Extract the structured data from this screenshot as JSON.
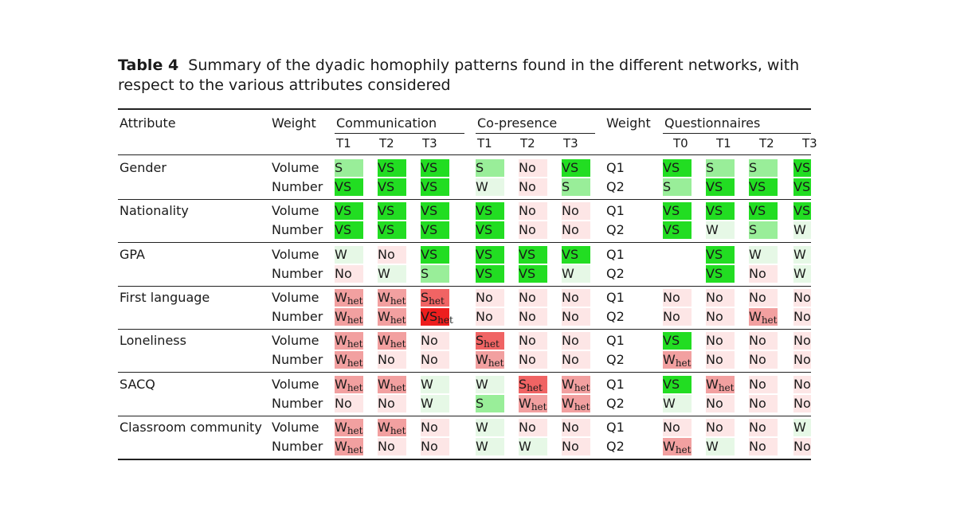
{
  "caption": {
    "label": "Table 4",
    "text": "Summary of the dyadic homophily patterns found in the different networks, with respect to the various attributes considered"
  },
  "headers": {
    "attribute": "Attribute",
    "weight": "Weight",
    "communication": "Communication",
    "copresence": "Co-presence",
    "weight2": "Weight",
    "questionnaires": "Questionnaires",
    "comm_sub": [
      "T1",
      "T2",
      "T3"
    ],
    "cop_sub": [
      "T1",
      "T2",
      "T3"
    ],
    "q_sub": [
      "T0",
      "T1",
      "T2",
      "T3"
    ]
  },
  "colors": {
    "VS": "#22dd22",
    "S": "#99ee99",
    "W": "#e6f8e6",
    "No": "#fde6e6",
    "Whet": "#f2a0a0",
    "Shet": "#f06464",
    "VShet": "#ee1e1e"
  },
  "groups": [
    {
      "attribute": "Gender",
      "rows": [
        {
          "weight": "Volume",
          "comm": [
            "S",
            "VS",
            "VS"
          ],
          "cop": [
            "S",
            "No",
            "VS"
          ],
          "qweight": "Q1",
          "q": [
            "VS",
            "S",
            "S",
            "VS"
          ]
        },
        {
          "weight": "Number",
          "comm": [
            "VS",
            "VS",
            "VS"
          ],
          "cop": [
            "W",
            "No",
            "S"
          ],
          "qweight": "Q2",
          "q": [
            "S",
            "VS",
            "VS",
            "VS"
          ]
        }
      ]
    },
    {
      "attribute": "Nationality",
      "rows": [
        {
          "weight": "Volume",
          "comm": [
            "VS",
            "VS",
            "VS"
          ],
          "cop": [
            "VS",
            "No",
            "No"
          ],
          "qweight": "Q1",
          "q": [
            "VS",
            "VS",
            "VS",
            "VS"
          ]
        },
        {
          "weight": "Number",
          "comm": [
            "VS",
            "VS",
            "VS"
          ],
          "cop": [
            "VS",
            "No",
            "No"
          ],
          "qweight": "Q2",
          "q": [
            "VS",
            "W",
            "S",
            "W"
          ]
        }
      ]
    },
    {
      "attribute": "GPA",
      "rows": [
        {
          "weight": "Volume",
          "comm": [
            "W",
            "No",
            "VS"
          ],
          "cop": [
            "VS",
            "VS",
            "VS"
          ],
          "qweight": "Q1",
          "q": [
            "",
            "VS",
            "W",
            "W"
          ]
        },
        {
          "weight": "Number",
          "comm": [
            "No",
            "W",
            "S"
          ],
          "cop": [
            "VS",
            "VS",
            "W"
          ],
          "qweight": "Q2",
          "q": [
            "",
            "VS",
            "No",
            "W"
          ]
        }
      ]
    },
    {
      "attribute": "First language",
      "rows": [
        {
          "weight": "Volume",
          "comm": [
            "Whet",
            "Whet",
            "Shet"
          ],
          "cop": [
            "No",
            "No",
            "No"
          ],
          "qweight": "Q1",
          "q": [
            "No",
            "No",
            "No",
            "No"
          ]
        },
        {
          "weight": "Number",
          "comm": [
            "Whet",
            "Whet",
            "VShet"
          ],
          "cop": [
            "No",
            "No",
            "No"
          ],
          "qweight": "Q2",
          "q": [
            "No",
            "No",
            "Whet",
            "No"
          ]
        }
      ]
    },
    {
      "attribute": "Loneliness",
      "rows": [
        {
          "weight": "Volume",
          "comm": [
            "Whet",
            "Whet",
            "No"
          ],
          "cop": [
            "Shet",
            "No",
            "No"
          ],
          "qweight": "Q1",
          "q": [
            "VS",
            "No",
            "No",
            "No"
          ]
        },
        {
          "weight": "Number",
          "comm": [
            "Whet",
            "No",
            "No"
          ],
          "cop": [
            "Whet",
            "No",
            "No"
          ],
          "qweight": "Q2",
          "q": [
            "Whet",
            "No",
            "No",
            "No"
          ]
        }
      ]
    },
    {
      "attribute": "SACQ",
      "rows": [
        {
          "weight": "Volume",
          "comm": [
            "Whet",
            "Whet",
            "W"
          ],
          "cop": [
            "W",
            "Shet",
            "Whet"
          ],
          "qweight": "Q1",
          "q": [
            "VS",
            "Whet",
            "No",
            "No"
          ]
        },
        {
          "weight": "Number",
          "comm": [
            "No",
            "No",
            "W"
          ],
          "cop": [
            "S",
            "Whet",
            "Whet"
          ],
          "qweight": "Q2",
          "q": [
            "W",
            "No",
            "No",
            "No"
          ]
        }
      ]
    },
    {
      "attribute": "Classroom community",
      "rows": [
        {
          "weight": "Volume",
          "comm": [
            "Whet",
            "Whet",
            "No"
          ],
          "cop": [
            "W",
            "No",
            "No"
          ],
          "qweight": "Q1",
          "q": [
            "No",
            "No",
            "No",
            "W"
          ]
        },
        {
          "weight": "Number",
          "comm": [
            "Whet",
            "No",
            "No"
          ],
          "cop": [
            "W",
            "W",
            "No"
          ],
          "qweight": "Q2",
          "q": [
            "Whet",
            "W",
            "No",
            "No"
          ]
        }
      ]
    }
  ]
}
